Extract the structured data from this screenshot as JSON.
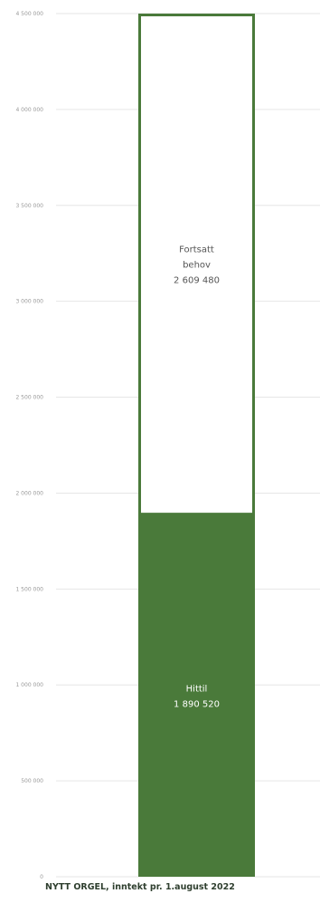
{
  "chart_data": {
    "type": "bar",
    "title": "NYTT ORGEL, inntekt pr. 1.august 2022",
    "xlabel": "",
    "ylabel": "",
    "ylim": [
      0,
      4500000
    ],
    "grid": true,
    "yticks": [
      0,
      500000,
      1000000,
      1500000,
      2000000,
      2500000,
      3000000,
      3500000,
      4000000,
      4500000
    ],
    "ytick_labels": [
      "0",
      "500 000",
      "1 000 000",
      "1 500 000",
      "2 000 000",
      "2 500 000",
      "3 000 000",
      "3 500 000",
      "4 000 000",
      "4 500 000"
    ],
    "series": [
      {
        "label_lines": [
          "Hittil",
          "1 890 520"
        ],
        "value": 1890520,
        "fill": "#4a7a3a",
        "label_color": "#ffffff"
      },
      {
        "label_lines": [
          "Fortsatt",
          "behov",
          "2 609 480"
        ],
        "value": 2609480,
        "fill": "#ffffff",
        "label_color": "#555555"
      }
    ],
    "colors": {
      "bar_green": "#4a7a3a",
      "bar_outline": "#4a7a3a",
      "grid": "#e6e6e6"
    }
  }
}
